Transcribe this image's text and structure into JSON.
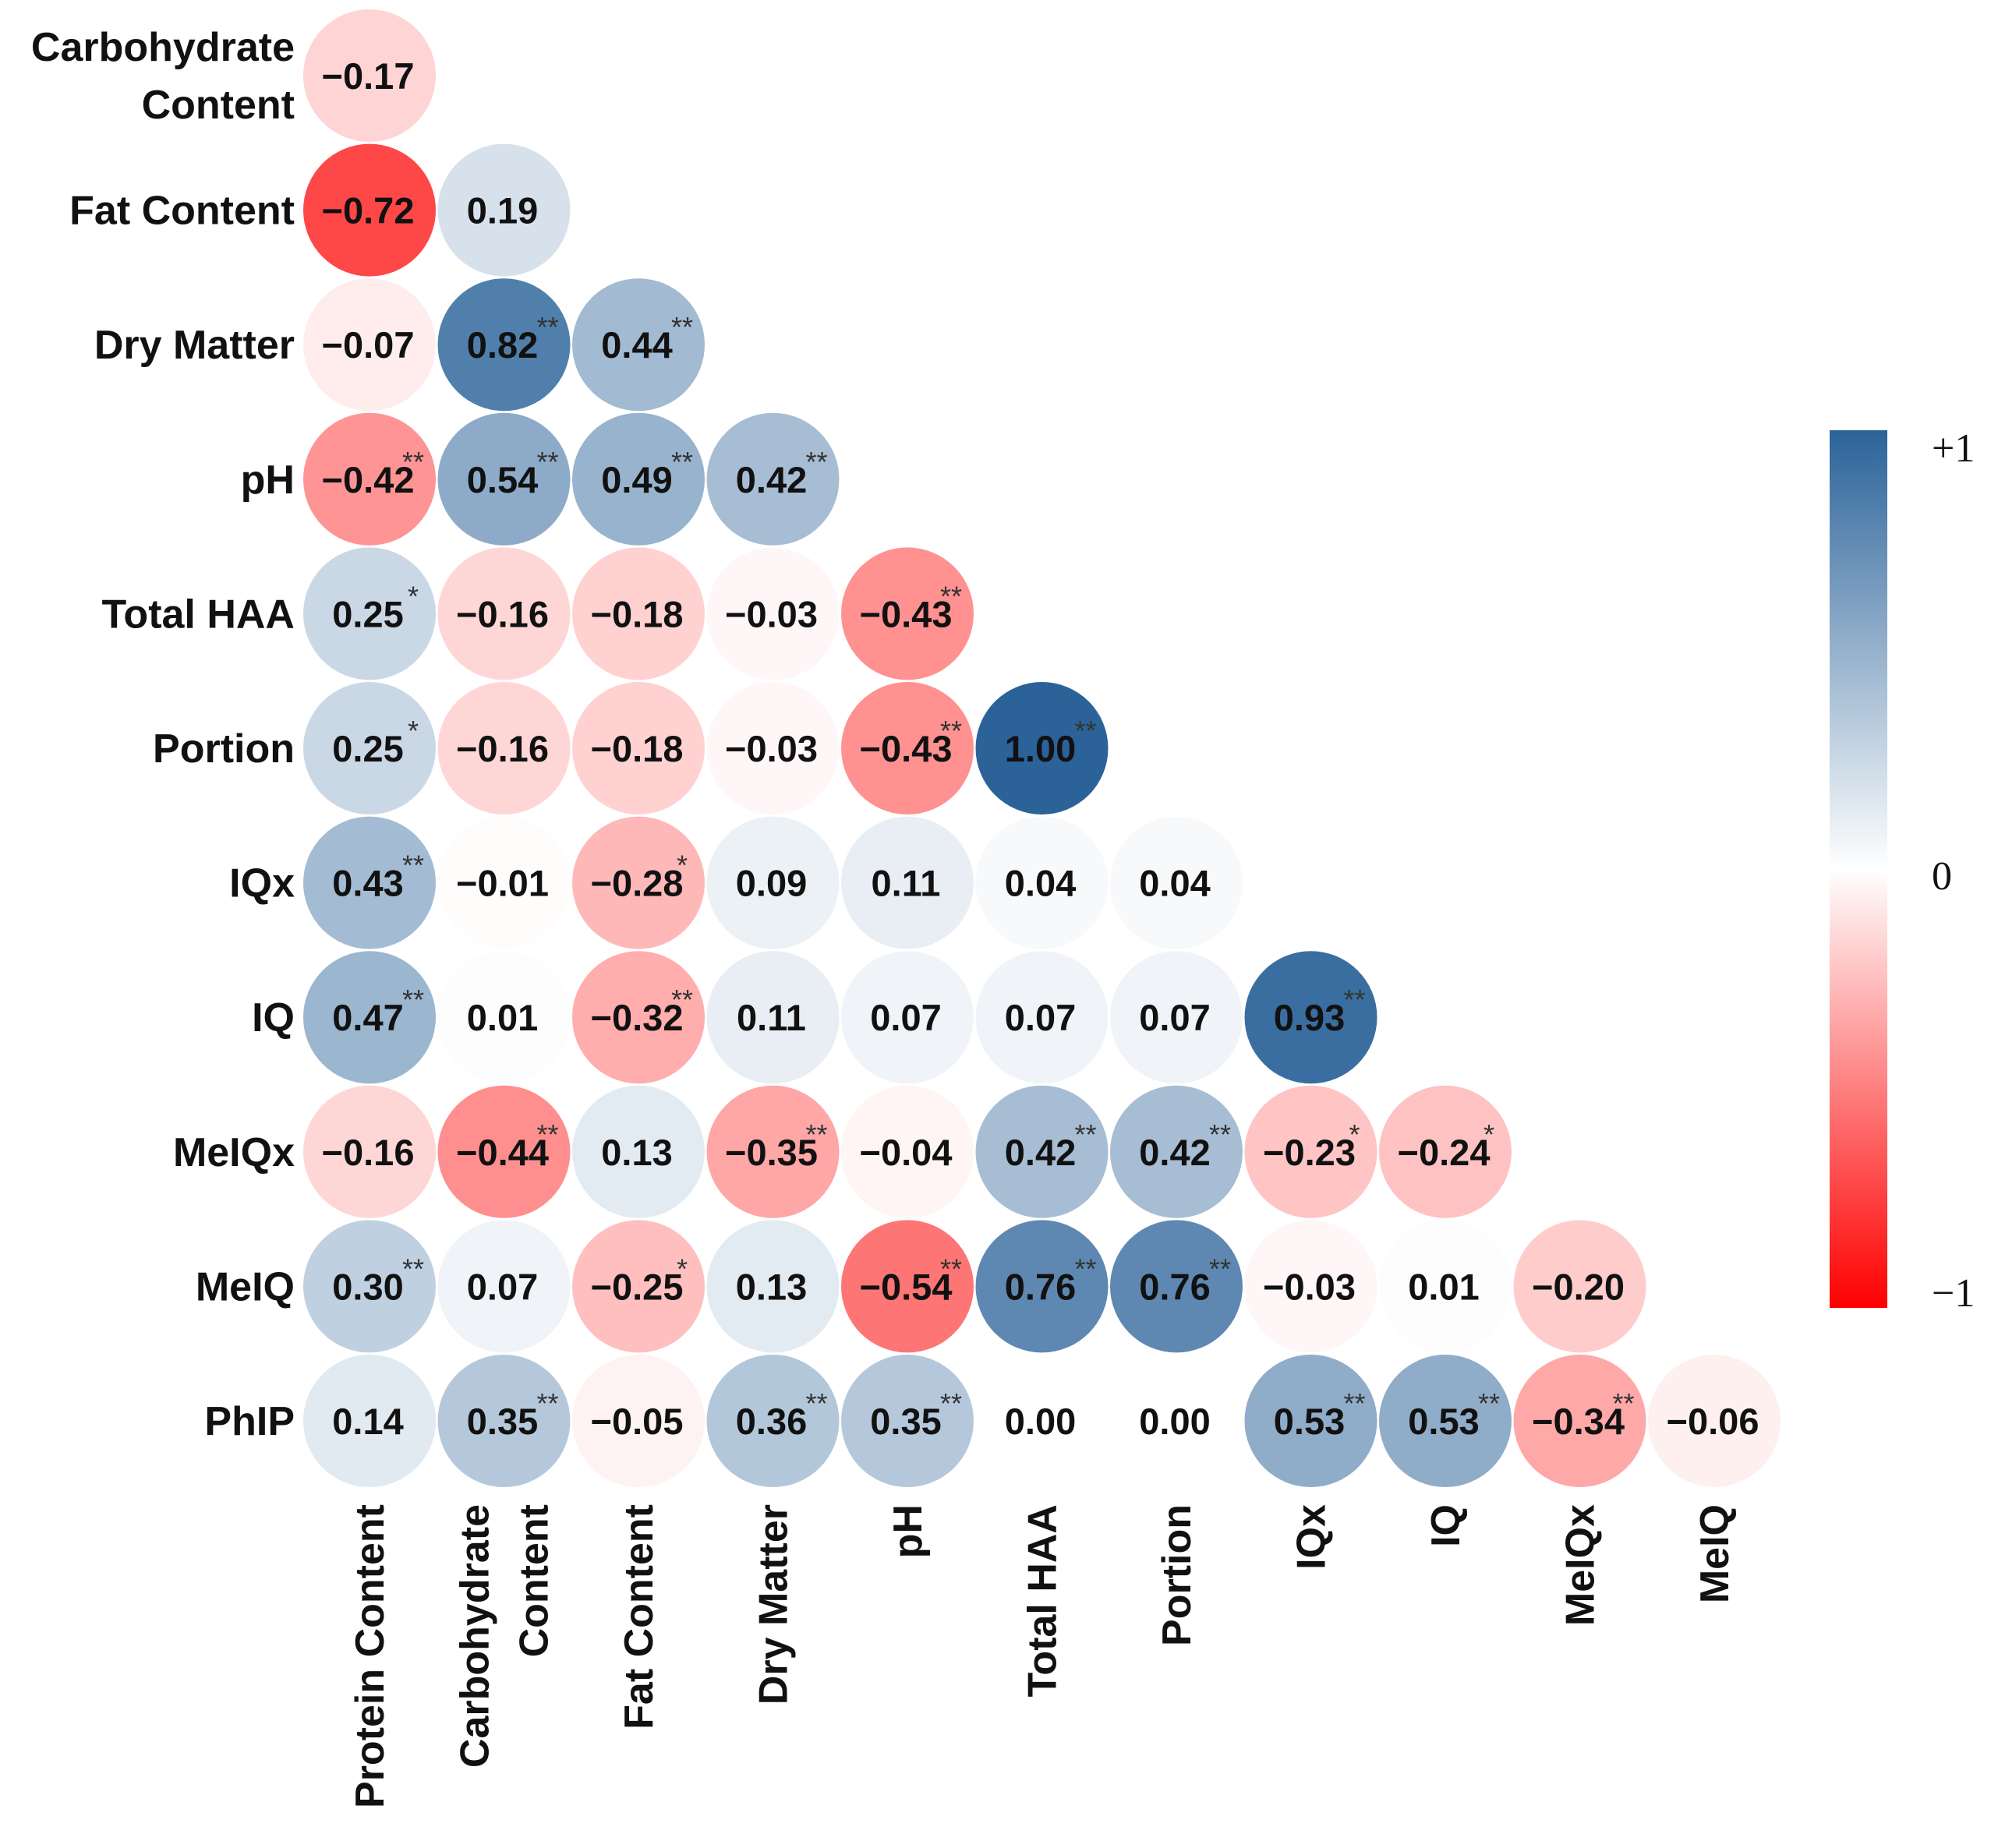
{
  "chart_data": {
    "type": "heatmap",
    "subtype": "correlation-circle-lower-triangle",
    "title": "",
    "column_labels": [
      "Protein Content",
      "Carbohydrate Content",
      "Fat Content",
      "Dry Matter",
      "pH",
      "Total HAA",
      "Portion",
      "IQx",
      "IQ",
      "MeIQx",
      "MeIQ"
    ],
    "column_label_lines": [
      [
        "Protein Content"
      ],
      [
        "Carbohydrate",
        "Content"
      ],
      [
        "Fat Content"
      ],
      [
        "Dry Matter"
      ],
      [
        "pH"
      ],
      [
        "Total HAA"
      ],
      [
        "Portion"
      ],
      [
        "IQx"
      ],
      [
        "IQ"
      ],
      [
        "MeIQx"
      ],
      [
        "MeIQ"
      ]
    ],
    "row_labels": [
      "Carbohydrate Content",
      "Fat Content",
      "Dry Matter",
      "pH",
      "Total HAA",
      "Portion",
      "IQx",
      "IQ",
      "MeIQx",
      "MeIQ",
      "PhIP"
    ],
    "row_label_lines": [
      [
        "Carbohydrate",
        "Content"
      ],
      [
        "Fat Content"
      ],
      [
        "Dry Matter"
      ],
      [
        "pH"
      ],
      [
        "Total HAA"
      ],
      [
        "Portion"
      ],
      [
        "IQx"
      ],
      [
        "IQ"
      ],
      [
        "MeIQx"
      ],
      [
        "MeIQ"
      ],
      [
        "PhIP"
      ]
    ],
    "values": [
      [
        -0.17
      ],
      [
        -0.72,
        0.19
      ],
      [
        -0.07,
        0.82,
        0.44
      ],
      [
        -0.42,
        0.54,
        0.49,
        0.42
      ],
      [
        0.25,
        -0.16,
        -0.18,
        -0.03,
        -0.43
      ],
      [
        0.25,
        -0.16,
        -0.18,
        -0.03,
        -0.43,
        1.0
      ],
      [
        0.43,
        -0.01,
        -0.28,
        0.09,
        0.11,
        0.04,
        0.04
      ],
      [
        0.47,
        0.01,
        -0.32,
        0.11,
        0.07,
        0.07,
        0.07,
        0.93
      ],
      [
        -0.16,
        -0.44,
        0.13,
        -0.35,
        -0.04,
        0.42,
        0.42,
        -0.23,
        -0.24
      ],
      [
        0.3,
        0.07,
        -0.25,
        0.13,
        -0.54,
        0.76,
        0.76,
        -0.03,
        0.01,
        -0.2
      ],
      [
        0.14,
        0.35,
        -0.05,
        0.36,
        0.35,
        0.0,
        0.0,
        0.53,
        0.53,
        -0.34,
        -0.06
      ]
    ],
    "significance": [
      [
        ""
      ],
      [
        "",
        ""
      ],
      [
        "",
        "**",
        "**"
      ],
      [
        "**",
        "**",
        "**",
        "**"
      ],
      [
        "*",
        "",
        "",
        "",
        "**"
      ],
      [
        "*",
        "",
        "",
        "",
        "**",
        "**"
      ],
      [
        "**",
        "",
        "*",
        "",
        "",
        "",
        ""
      ],
      [
        "**",
        "",
        "**",
        "",
        "",
        "",
        "",
        "**"
      ],
      [
        "",
        "**",
        "",
        "**",
        "",
        "**",
        "**",
        "*",
        "*"
      ],
      [
        "**",
        "",
        "*",
        "",
        "**",
        "**",
        "**",
        "",
        "",
        ""
      ],
      [
        "",
        "**",
        "",
        "**",
        "**",
        "",
        "",
        "**",
        "**",
        "**",
        ""
      ]
    ],
    "colorbar": {
      "min": -1,
      "max": 1,
      "labels": {
        "top": "+1",
        "middle": "0",
        "bottom": "−1"
      },
      "colors": {
        "negative": "#fe0000",
        "zero": "#ffffff",
        "positive": "#2b6399"
      }
    }
  }
}
